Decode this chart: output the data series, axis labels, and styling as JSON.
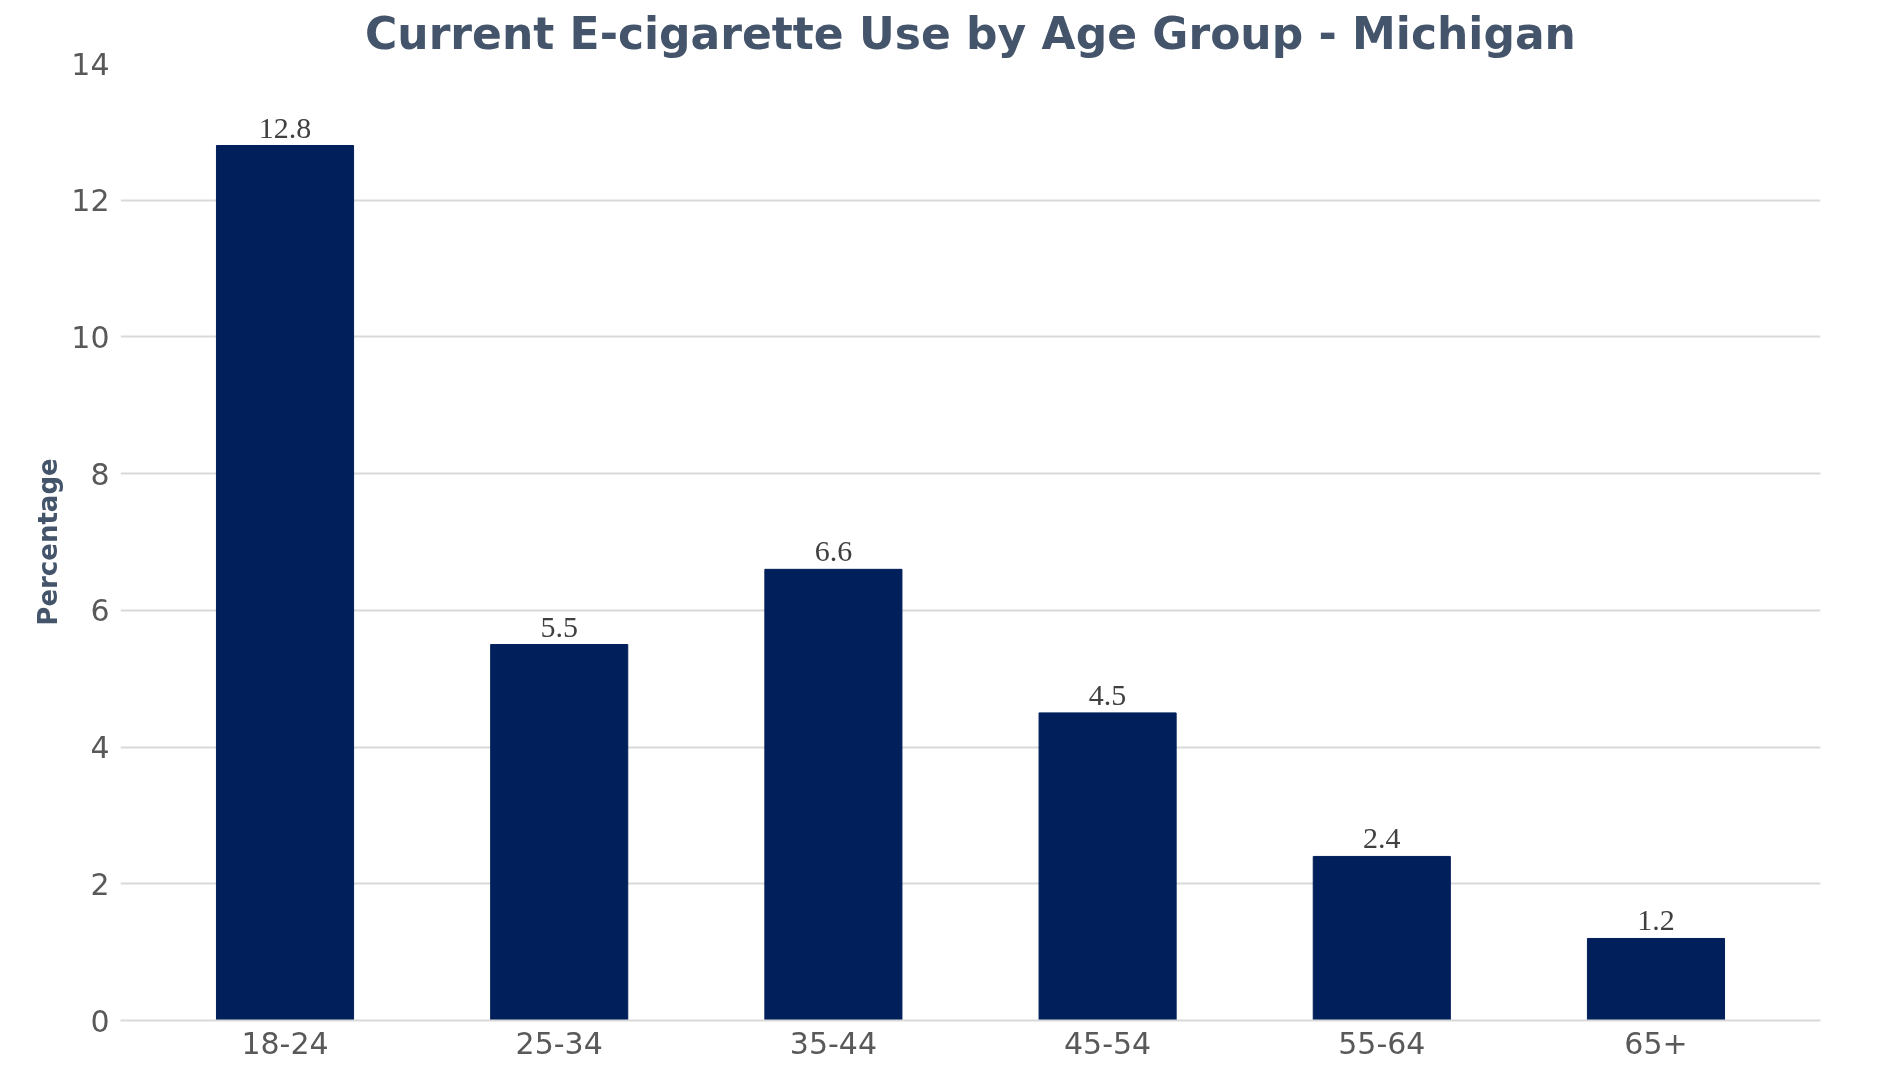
{
  "chart_data": {
    "type": "bar",
    "title": "Current E-cigarette Use by Age Group - Michigan",
    "ylabel": "Percentage",
    "categories": [
      "18-24",
      "25-34",
      "35-44",
      "45-54",
      "55-64",
      "65+"
    ],
    "values": [
      12.8,
      5.5,
      6.6,
      4.5,
      2.4,
      1.2
    ],
    "color": "#001f5b",
    "ylim": [
      0,
      14
    ],
    "yticks": [
      0,
      2,
      4,
      6,
      8,
      10,
      12,
      14
    ],
    "grid": "y",
    "data_labels": true
  }
}
